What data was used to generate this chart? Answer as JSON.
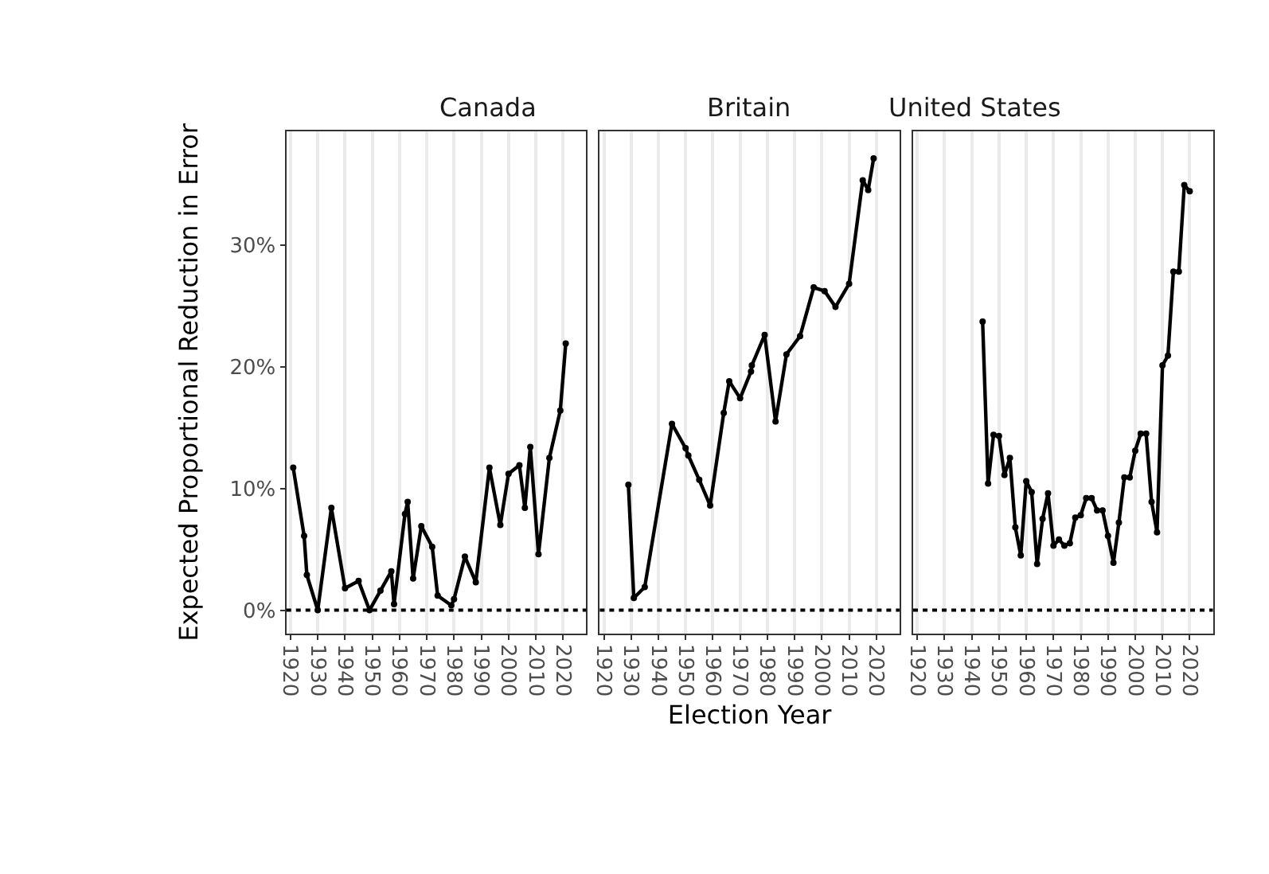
{
  "chart_data": [
    {
      "type": "line",
      "title": "Canada",
      "ylabel": "Expected Proportional Reduction in Error",
      "tick_labels": "xy",
      "grid": "x",
      "marker": "circle",
      "line_style": "solid",
      "color": "#000000",
      "x": [
        1921,
        1925,
        1926,
        1930,
        1935,
        1940,
        1945,
        1949,
        1953,
        1957,
        1958,
        1962,
        1963,
        1965,
        1968,
        1972,
        1974,
        1979,
        1980,
        1984,
        1988,
        1993,
        1997,
        2000,
        2004,
        2006,
        2008,
        2011,
        2015,
        2019,
        2021
      ],
      "values": [
        11.7,
        6.1,
        2.9,
        0,
        8.4,
        1.8,
        2.4,
        0,
        1.6,
        3.2,
        0.5,
        7.9,
        8.9,
        2.6,
        6.9,
        5.2,
        1.2,
        0.4,
        0.9,
        4.4,
        2.3,
        11.7,
        7.0,
        11.2,
        11.9,
        8.4,
        13.4,
        4.6,
        12.5,
        16.4,
        21.9
      ],
      "xlim": [
        1918.5,
        2028.5
      ],
      "xticks": [
        1920,
        1930,
        1940,
        1950,
        1960,
        1970,
        1980,
        1990,
        2000,
        2010,
        2020
      ],
      "ylim": [
        -1.9,
        39.3
      ],
      "yticks": [
        {
          "value": 0,
          "label": "0%"
        },
        {
          "value": 10,
          "label": "10%"
        },
        {
          "value": 20,
          "label": "20%"
        },
        {
          "value": 30,
          "label": "30%"
        }
      ],
      "ref_lines": [
        {
          "axis": "y",
          "value": 0,
          "label": null,
          "line_style": "dotted",
          "color": "#000000"
        }
      ]
    },
    {
      "type": "line",
      "title": "Britain",
      "xlabel": "Election Year",
      "tick_labels": "x",
      "grid": "x",
      "marker": "circle",
      "line_style": "solid",
      "color": "#000000",
      "x": [
        1929,
        1931,
        1935,
        1945,
        1950,
        1951,
        1955,
        1959,
        1964,
        1966,
        1970,
        1974,
        1974.3,
        1979,
        1983,
        1987,
        1992,
        1997,
        2001,
        2005,
        2010,
        2015,
        2017,
        2019
      ],
      "values": [
        10.3,
        1.0,
        1.9,
        15.3,
        13.3,
        12.7,
        10.7,
        8.6,
        16.2,
        18.8,
        17.4,
        19.6,
        20.1,
        22.6,
        15.5,
        21.0,
        22.5,
        26.5,
        26.2,
        24.9,
        26.8,
        35.3,
        34.5,
        37.1
      ],
      "xlim": [
        1918.5,
        2028.5
      ],
      "xticks": [
        1920,
        1930,
        1940,
        1950,
        1960,
        1970,
        1980,
        1990,
        2000,
        2010,
        2020
      ],
      "ylim": [
        -1.9,
        39.3
      ],
      "ref_lines": [
        {
          "axis": "y",
          "value": 0,
          "label": null,
          "line_style": "dotted",
          "color": "#000000"
        }
      ]
    },
    {
      "type": "line",
      "title": "United States",
      "tick_labels": "x",
      "grid": "x",
      "marker": "circle",
      "line_style": "solid",
      "color": "#000000",
      "x": [
        1944,
        1946,
        1948,
        1950,
        1952,
        1954,
        1956,
        1958,
        1960,
        1962,
        1964,
        1966,
        1968,
        1970,
        1972,
        1974,
        1976,
        1978,
        1980,
        1982,
        1984,
        1986,
        1988,
        1990,
        1992,
        1994,
        1996,
        1998,
        2000,
        2002,
        2004,
        2006,
        2008,
        2010,
        2012,
        2014,
        2016,
        2018,
        2020
      ],
      "values": [
        23.7,
        10.4,
        14.4,
        14.3,
        11.1,
        12.5,
        6.8,
        4.5,
        10.6,
        9.7,
        3.8,
        7.5,
        9.6,
        5.3,
        5.8,
        5.3,
        5.5,
        7.6,
        7.8,
        9.2,
        9.2,
        8.2,
        8.2,
        6.1,
        3.9,
        7.2,
        10.9,
        10.9,
        13.1,
        14.5,
        14.5,
        8.9,
        6.4,
        20.1,
        20.9,
        27.8,
        27.8,
        34.9,
        34.4
      ],
      "xlim": [
        1918.5,
        2028.5
      ],
      "xticks": [
        1920,
        1930,
        1940,
        1950,
        1960,
        1970,
        1980,
        1990,
        2000,
        2010,
        2020
      ],
      "ylim": [
        -1.9,
        39.3
      ],
      "ref_lines": [
        {
          "axis": "y",
          "value": 0,
          "label": null,
          "line_style": "dotted",
          "color": "#000000"
        }
      ]
    }
  ]
}
